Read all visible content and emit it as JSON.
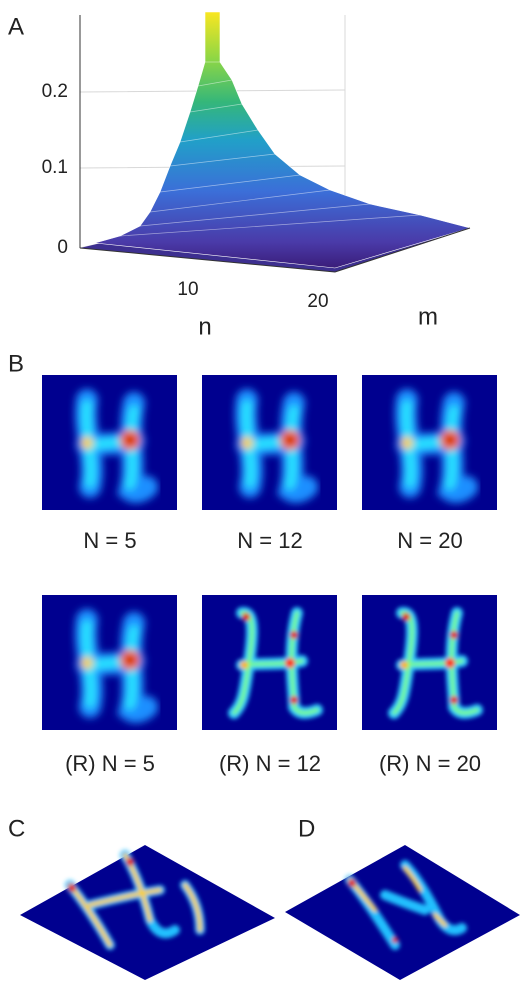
{
  "panel_a": {
    "label": "A",
    "y_ticks": [
      0.2,
      0.1,
      0
    ],
    "x_ticks": [
      10,
      20
    ],
    "x_label": "n",
    "depth_label": "m"
  },
  "panel_b": {
    "label": "B",
    "captions": [
      "N = 5",
      "N = 12",
      "N = 20",
      "(R) N = 5",
      "(R) N = 12",
      "(R) N = 20"
    ]
  },
  "panel_c": {
    "label": "C"
  },
  "panel_d": {
    "label": "D"
  }
}
